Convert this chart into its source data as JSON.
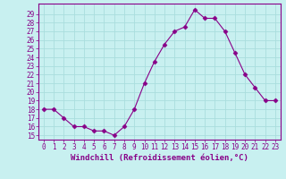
{
  "x": [
    0,
    1,
    2,
    3,
    4,
    5,
    6,
    7,
    8,
    9,
    10,
    11,
    12,
    13,
    14,
    15,
    16,
    17,
    18,
    19,
    20,
    21,
    22,
    23
  ],
  "y": [
    18,
    18,
    17,
    16,
    16,
    15.5,
    15.5,
    15,
    16,
    18,
    21,
    23.5,
    25.5,
    27,
    27.5,
    29.5,
    28.5,
    28.5,
    27,
    24.5,
    22,
    20.5,
    19,
    19
  ],
  "line_color": "#880088",
  "marker": "D",
  "marker_size": 2.5,
  "bg_color": "#c8f0f0",
  "grid_color": "#aadddd",
  "xlabel": "Windchill (Refroidissement éolien,°C)",
  "xlabel_color": "#880088",
  "tick_color": "#880088",
  "spine_color": "#880088",
  "ylim_min": 14.5,
  "ylim_max": 30.2,
  "xlim_min": -0.5,
  "xlim_max": 23.5,
  "yticks": [
    15,
    16,
    17,
    18,
    19,
    20,
    21,
    22,
    23,
    24,
    25,
    26,
    27,
    28,
    29
  ],
  "xticks": [
    0,
    1,
    2,
    3,
    4,
    5,
    6,
    7,
    8,
    9,
    10,
    11,
    12,
    13,
    14,
    15,
    16,
    17,
    18,
    19,
    20,
    21,
    22,
    23
  ],
  "font_size": 5.5,
  "label_font_size": 6.5
}
